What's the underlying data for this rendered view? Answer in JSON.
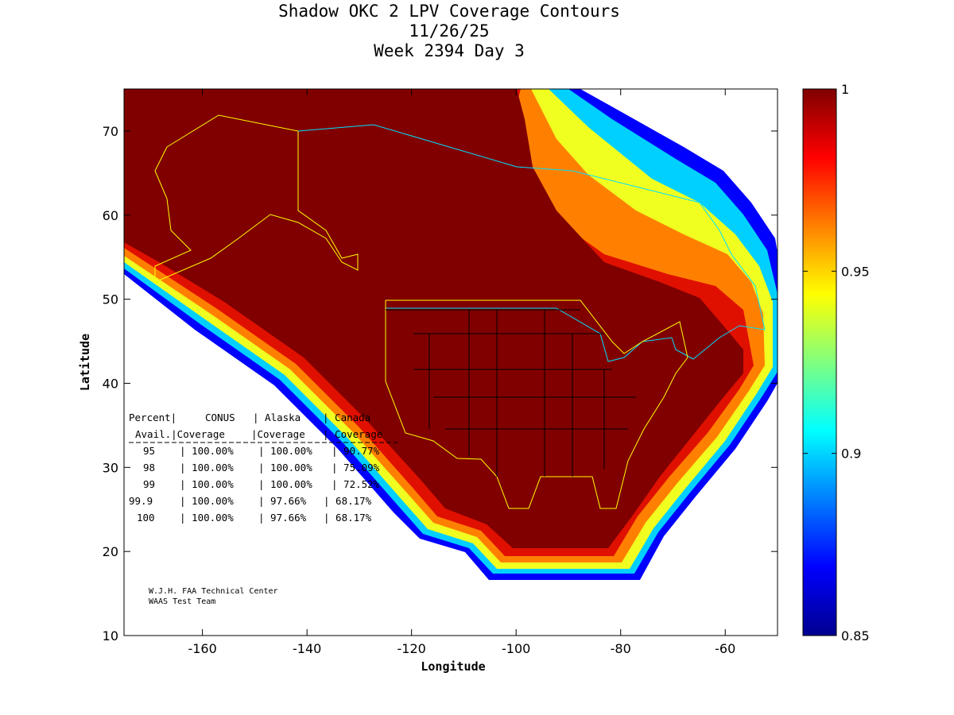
{
  "chart_data": {
    "type": "heatmap",
    "title": [
      "Shadow OKC 2 LPV Coverage Contours",
      "11/26/25",
      "Week 2394 Day 3"
    ],
    "xlabel": "Longitude",
    "ylabel": "Latitude",
    "xlim": [
      -175,
      -50
    ],
    "ylim": [
      10,
      75
    ],
    "xticks": [
      "-160",
      "-140",
      "-120",
      "-100",
      "-80",
      "-60"
    ],
    "xtick_values": [
      -160,
      -140,
      -120,
      -100,
      -80,
      -60
    ],
    "yticks": [
      "10",
      "20",
      "30",
      "40",
      "50",
      "60",
      "70"
    ],
    "ytick_values": [
      10,
      20,
      30,
      40,
      50,
      60,
      70
    ],
    "colorbar": {
      "range": [
        0.85,
        1
      ],
      "ticks": [
        "0.85",
        "0.9",
        "0.95",
        "1"
      ],
      "tick_values": [
        0.85,
        0.9,
        0.95,
        1
      ],
      "colormap": "jet"
    },
    "table": {
      "header1": [
        "Percent|",
        "CONUS",
        "| Alaska",
        "| Canada"
      ],
      "header2": [
        "Avail.|Coverage",
        "|Coverage",
        "| Coverage"
      ],
      "rows": [
        {
          "avail": "95",
          "conus": "| 100.00%",
          "alaska": "| 100.00%",
          "canada": "| 90.77%"
        },
        {
          "avail": "98",
          "conus": "| 100.00%",
          "alaska": "| 100.00%",
          "canada": "| 75.09%"
        },
        {
          "avail": "99",
          "conus": "| 100.00%",
          "alaska": "| 100.00%",
          "canada": "| 72.52%"
        },
        {
          "avail": "99.9",
          "conus": "| 100.00%",
          "alaska": "| 97.66%",
          "canada": "| 68.17%"
        },
        {
          "avail": "100",
          "conus": "| 100.00%",
          "alaska": "| 97.66%",
          "canada": "| 68.17%"
        }
      ]
    },
    "credit": [
      "W.J.H. FAA Technical Center",
      "WAAS Test Team"
    ]
  }
}
